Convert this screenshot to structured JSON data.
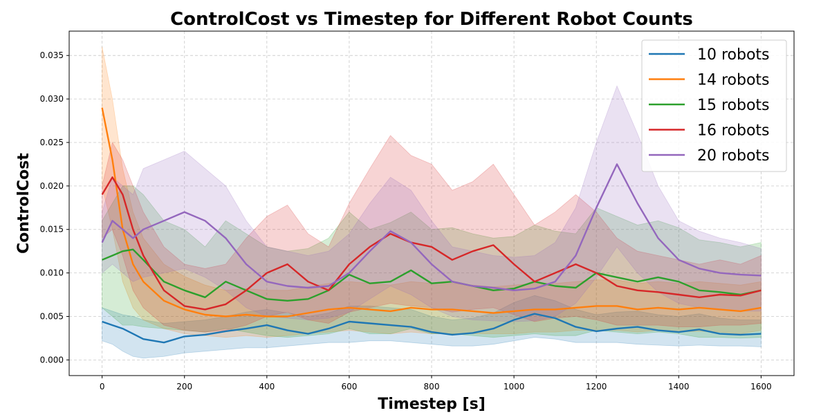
{
  "chart_data": {
    "type": "line",
    "title": "ControlCost vs Timestep for Different Robot Counts",
    "xlabel": "Timestep [s]",
    "ylabel": "ControlCost",
    "xlim": [
      -80,
      1680
    ],
    "ylim": [
      -0.0018,
      0.0378
    ],
    "xticks": [
      0,
      200,
      400,
      600,
      800,
      1000,
      1200,
      1400,
      1600
    ],
    "yticks": [
      0.0,
      0.005,
      0.01,
      0.015,
      0.02,
      0.025,
      0.03,
      0.035
    ],
    "ytick_labels": [
      "0.000",
      "0.005",
      "0.010",
      "0.015",
      "0.020",
      "0.025",
      "0.030",
      "0.035"
    ],
    "grid": true,
    "legend_position": "top-right",
    "x": [
      0,
      25,
      50,
      75,
      100,
      150,
      200,
      250,
      300,
      350,
      400,
      450,
      500,
      550,
      600,
      650,
      700,
      750,
      800,
      850,
      900,
      950,
      1000,
      1050,
      1100,
      1150,
      1200,
      1250,
      1300,
      1350,
      1400,
      1450,
      1500,
      1550,
      1600
    ],
    "series": [
      {
        "name": "10 robots",
        "color": "#1f77b4",
        "values": [
          0.0044,
          0.004,
          0.0036,
          0.003,
          0.0024,
          0.002,
          0.0027,
          0.0029,
          0.0033,
          0.0036,
          0.004,
          0.0034,
          0.003,
          0.0036,
          0.0044,
          0.0042,
          0.004,
          0.0038,
          0.0032,
          0.0029,
          0.0031,
          0.0036,
          0.0046,
          0.0053,
          0.0048,
          0.0038,
          0.0033,
          0.0036,
          0.0038,
          0.0034,
          0.0032,
          0.0035,
          0.003,
          0.0029,
          0.003
        ],
        "lower": [
          0.0022,
          0.0018,
          0.001,
          0.0004,
          0.0002,
          0.0004,
          0.0008,
          0.001,
          0.0012,
          0.0014,
          0.0014,
          0.0016,
          0.0018,
          0.002,
          0.002,
          0.0022,
          0.0022,
          0.002,
          0.0018,
          0.0016,
          0.0016,
          0.0018,
          0.0022,
          0.0026,
          0.0024,
          0.002,
          0.002,
          0.002,
          0.0018,
          0.0017,
          0.0016,
          0.0017,
          0.0016,
          0.0016,
          0.0015
        ],
        "upper": [
          0.006,
          0.0056,
          0.0052,
          0.005,
          0.0046,
          0.0042,
          0.0044,
          0.0046,
          0.005,
          0.0055,
          0.0058,
          0.0054,
          0.005,
          0.0054,
          0.0062,
          0.0062,
          0.006,
          0.0058,
          0.005,
          0.0046,
          0.0048,
          0.0054,
          0.0066,
          0.0074,
          0.0068,
          0.0058,
          0.0052,
          0.0055,
          0.0056,
          0.0052,
          0.005,
          0.0053,
          0.0048,
          0.0046,
          0.0046
        ]
      },
      {
        "name": "14 robots",
        "color": "#ff7f0e",
        "values": [
          0.029,
          0.023,
          0.015,
          0.011,
          0.009,
          0.0068,
          0.0058,
          0.0052,
          0.005,
          0.0052,
          0.005,
          0.005,
          0.0054,
          0.0058,
          0.006,
          0.0058,
          0.0056,
          0.006,
          0.0058,
          0.0058,
          0.0056,
          0.0054,
          0.0056,
          0.0058,
          0.0058,
          0.006,
          0.0062,
          0.0062,
          0.0058,
          0.006,
          0.0058,
          0.006,
          0.0058,
          0.0056,
          0.006
        ],
        "lower": [
          0.02,
          0.015,
          0.009,
          0.006,
          0.0046,
          0.0036,
          0.003,
          0.0028,
          0.0026,
          0.0028,
          0.0026,
          0.0028,
          0.003,
          0.0032,
          0.0034,
          0.0032,
          0.003,
          0.0032,
          0.003,
          0.003,
          0.003,
          0.003,
          0.003,
          0.0032,
          0.0032,
          0.0034,
          0.0034,
          0.0034,
          0.0032,
          0.0034,
          0.0032,
          0.0033,
          0.0032,
          0.003,
          0.0034
        ],
        "upper": [
          0.036,
          0.03,
          0.022,
          0.017,
          0.014,
          0.011,
          0.0096,
          0.0086,
          0.008,
          0.0082,
          0.008,
          0.008,
          0.0084,
          0.0088,
          0.009,
          0.0088,
          0.0086,
          0.009,
          0.0088,
          0.0088,
          0.0086,
          0.0084,
          0.0086,
          0.0088,
          0.0088,
          0.009,
          0.0092,
          0.0092,
          0.0088,
          0.009,
          0.0088,
          0.009,
          0.0088,
          0.0086,
          0.009
        ]
      },
      {
        "name": "15 robots",
        "color": "#2ca02c",
        "values": [
          0.0115,
          0.012,
          0.0125,
          0.0127,
          0.0115,
          0.009,
          0.008,
          0.0072,
          0.009,
          0.008,
          0.007,
          0.0068,
          0.007,
          0.008,
          0.0098,
          0.0088,
          0.009,
          0.0103,
          0.0088,
          0.009,
          0.0085,
          0.008,
          0.0082,
          0.009,
          0.0085,
          0.0083,
          0.01,
          0.0095,
          0.009,
          0.0095,
          0.009,
          0.008,
          0.0078,
          0.0075,
          0.008
        ],
        "lower": [
          0.006,
          0.005,
          0.004,
          0.004,
          0.0038,
          0.0036,
          0.0034,
          0.0032,
          0.0036,
          0.0032,
          0.0028,
          0.0026,
          0.0028,
          0.003,
          0.0036,
          0.003,
          0.003,
          0.0036,
          0.003,
          0.003,
          0.0028,
          0.0026,
          0.0028,
          0.003,
          0.0028,
          0.0028,
          0.0034,
          0.0032,
          0.003,
          0.0032,
          0.003,
          0.0026,
          0.0026,
          0.0025,
          0.0026
        ],
        "upper": [
          0.016,
          0.018,
          0.02,
          0.02,
          0.019,
          0.016,
          0.015,
          0.013,
          0.016,
          0.0145,
          0.013,
          0.0125,
          0.0128,
          0.014,
          0.017,
          0.015,
          0.0158,
          0.017,
          0.015,
          0.0152,
          0.0145,
          0.014,
          0.0142,
          0.0155,
          0.0148,
          0.0145,
          0.0175,
          0.0165,
          0.0155,
          0.016,
          0.0152,
          0.0138,
          0.0135,
          0.013,
          0.0135
        ]
      },
      {
        "name": "16 robots",
        "color": "#d62728",
        "values": [
          0.019,
          0.021,
          0.019,
          0.015,
          0.012,
          0.008,
          0.0062,
          0.0058,
          0.0064,
          0.008,
          0.01,
          0.011,
          0.009,
          0.008,
          0.011,
          0.013,
          0.0145,
          0.0135,
          0.013,
          0.0115,
          0.0125,
          0.0132,
          0.011,
          0.009,
          0.01,
          0.011,
          0.01,
          0.0085,
          0.008,
          0.0078,
          0.0075,
          0.0072,
          0.0075,
          0.0074,
          0.008
        ],
        "lower": [
          0.014,
          0.015,
          0.012,
          0.008,
          0.006,
          0.004,
          0.0034,
          0.0032,
          0.0034,
          0.004,
          0.005,
          0.0055,
          0.0046,
          0.0042,
          0.0055,
          0.006,
          0.0065,
          0.0062,
          0.006,
          0.0055,
          0.0058,
          0.006,
          0.0052,
          0.0044,
          0.0048,
          0.005,
          0.0046,
          0.004,
          0.004,
          0.004,
          0.0038,
          0.0038,
          0.004,
          0.004,
          0.0042
        ],
        "upper": [
          0.02,
          0.025,
          0.023,
          0.02,
          0.017,
          0.013,
          0.011,
          0.0105,
          0.011,
          0.014,
          0.0165,
          0.0178,
          0.0145,
          0.013,
          0.018,
          0.022,
          0.0258,
          0.0235,
          0.0225,
          0.0195,
          0.0205,
          0.0225,
          0.019,
          0.0155,
          0.017,
          0.019,
          0.017,
          0.014,
          0.0125,
          0.012,
          0.0115,
          0.011,
          0.0115,
          0.011,
          0.012
        ]
      },
      {
        "name": "20 robots",
        "color": "#9467bd",
        "values": [
          0.0135,
          0.016,
          0.015,
          0.014,
          0.015,
          0.016,
          0.017,
          0.016,
          0.014,
          0.011,
          0.009,
          0.0085,
          0.0083,
          0.0085,
          0.01,
          0.0125,
          0.0148,
          0.0135,
          0.011,
          0.009,
          0.0085,
          0.0083,
          0.008,
          0.0082,
          0.009,
          0.012,
          0.0175,
          0.0225,
          0.018,
          0.014,
          0.0115,
          0.0105,
          0.01,
          0.0098,
          0.0097
        ],
        "lower": [
          0.01,
          0.011,
          0.01,
          0.009,
          0.0095,
          0.01,
          0.0105,
          0.0095,
          0.008,
          0.006,
          0.005,
          0.0048,
          0.0046,
          0.0048,
          0.0055,
          0.007,
          0.0085,
          0.0075,
          0.006,
          0.005,
          0.0046,
          0.0045,
          0.0044,
          0.0045,
          0.005,
          0.0065,
          0.0095,
          0.013,
          0.01,
          0.0078,
          0.0065,
          0.006,
          0.0058,
          0.0056,
          0.0056
        ],
        "upper": [
          0.017,
          0.021,
          0.02,
          0.019,
          0.022,
          0.023,
          0.024,
          0.022,
          0.02,
          0.016,
          0.013,
          0.0125,
          0.012,
          0.0125,
          0.0145,
          0.018,
          0.021,
          0.0195,
          0.016,
          0.013,
          0.0125,
          0.012,
          0.0118,
          0.012,
          0.0135,
          0.0175,
          0.025,
          0.0315,
          0.026,
          0.02,
          0.016,
          0.0148,
          0.014,
          0.0135,
          0.0128
        ]
      }
    ]
  }
}
